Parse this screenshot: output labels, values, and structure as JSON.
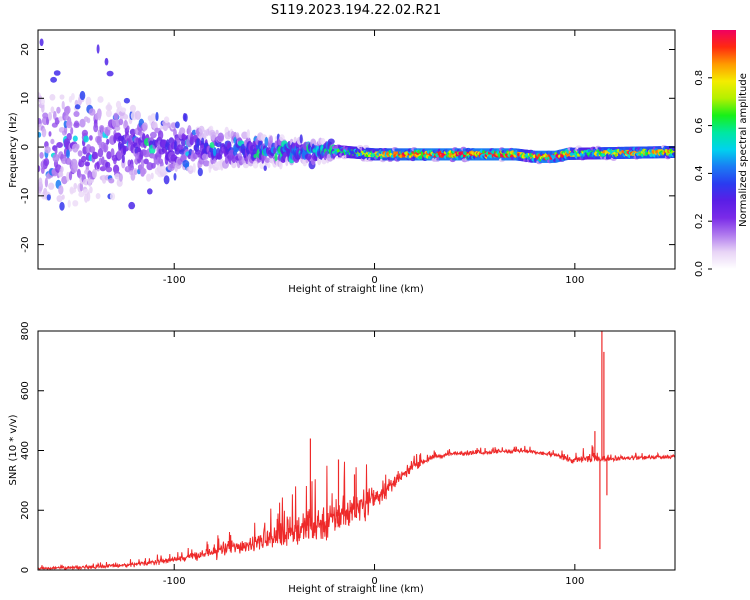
{
  "figure_title": "S119.2023.194.22.02.R21",
  "chart_data": [
    {
      "type": "heatmap",
      "title": "",
      "xlabel": "Height of straight line (km)",
      "ylabel": "Frequency (Hz)",
      "xlim": [
        -168,
        150
      ],
      "ylim": [
        -25,
        24
      ],
      "xticks": [
        -100,
        0,
        100
      ],
      "yticks": [
        -20,
        -10,
        0,
        10,
        20
      ],
      "colorbar": {
        "label": "Normalized spectral amplitude",
        "range": [
          0,
          1
        ],
        "ticks": [
          0.0,
          0.2,
          0.4,
          0.6,
          0.8
        ],
        "colormap": [
          "#ffffff",
          "#e8d4f6",
          "#b07aee",
          "#7a2be8",
          "#5a1ee6",
          "#2a3cf0",
          "#1a7cf4",
          "#00d2ee",
          "#00e8a0",
          "#18f018",
          "#b4f000",
          "#f4ec00",
          "#ff9a00",
          "#ff2a10",
          "#f00060"
        ]
      },
      "features": {
        "peak_frequency_hz": [
          {
            "x": -168,
            "y": 0
          },
          {
            "x": -100,
            "y": 0
          },
          {
            "x": -40,
            "y": -1
          },
          {
            "x": -20,
            "y": -0.8
          },
          {
            "x": 0,
            "y": -1.5
          },
          {
            "x": 40,
            "y": -1.5
          },
          {
            "x": 70,
            "y": -1.5
          },
          {
            "x": 80,
            "y": -2
          },
          {
            "x": 90,
            "y": -2
          },
          {
            "x": 96,
            "y": -1.4
          },
          {
            "x": 150,
            "y": -1
          }
        ],
        "spread_hz": [
          {
            "x": -168,
            "y": 20
          },
          {
            "x": -140,
            "y": 18
          },
          {
            "x": -110,
            "y": 10
          },
          {
            "x": -80,
            "y": 6
          },
          {
            "x": -50,
            "y": 4
          },
          {
            "x": -25,
            "y": 3
          },
          {
            "x": -18,
            "y": 1.2
          },
          {
            "x": 150,
            "y": 1.0
          }
        ],
        "peak_amplitude": [
          {
            "x": -168,
            "y": 0.2
          },
          {
            "x": -100,
            "y": 0.3
          },
          {
            "x": -70,
            "y": 0.35
          },
          {
            "x": -40,
            "y": 0.45
          },
          {
            "x": -20,
            "y": 0.55
          },
          {
            "x": 0,
            "y": 0.8
          },
          {
            "x": 20,
            "y": 0.95
          },
          {
            "x": 70,
            "y": 0.95
          },
          {
            "x": 75,
            "y": 0.7
          },
          {
            "x": 80,
            "y": 0.95
          },
          {
            "x": 94,
            "y": 0.95
          },
          {
            "x": 100,
            "y": 0.75
          },
          {
            "x": 108,
            "y": 0.6
          },
          {
            "x": 112,
            "y": 0.8
          },
          {
            "x": 130,
            "y": 0.85
          },
          {
            "x": 150,
            "y": 0.8
          }
        ]
      }
    },
    {
      "type": "line",
      "title": "",
      "xlabel": "Height of straight line (km)",
      "ylabel": "SNR (10 * v/v)",
      "xlim": [
        -168,
        150
      ],
      "ylim": [
        0,
        800
      ],
      "xticks": [
        -100,
        0,
        100
      ],
      "yticks": [
        0,
        200,
        400,
        600,
        800
      ],
      "series": [
        {
          "color": "#ee2a2a",
          "trend": [
            {
              "x": -168,
              "y": 5
            },
            {
              "x": -140,
              "y": 10
            },
            {
              "x": -120,
              "y": 18
            },
            {
              "x": -100,
              "y": 35
            },
            {
              "x": -80,
              "y": 60
            },
            {
              "x": -60,
              "y": 90
            },
            {
              "x": -45,
              "y": 120
            },
            {
              "x": -30,
              "y": 150
            },
            {
              "x": -20,
              "y": 175
            },
            {
              "x": -10,
              "y": 205
            },
            {
              "x": 0,
              "y": 240
            },
            {
              "x": 10,
              "y": 290
            },
            {
              "x": 20,
              "y": 350
            },
            {
              "x": 30,
              "y": 380
            },
            {
              "x": 40,
              "y": 390
            },
            {
              "x": 60,
              "y": 395
            },
            {
              "x": 75,
              "y": 398
            },
            {
              "x": 90,
              "y": 385
            },
            {
              "x": 100,
              "y": 365
            },
            {
              "x": 108,
              "y": 375
            },
            {
              "x": 115,
              "y": 372
            },
            {
              "x": 130,
              "y": 375
            },
            {
              "x": 150,
              "y": 380
            }
          ],
          "noise": [
            {
              "x": -168,
              "y": 6
            },
            {
              "x": -100,
              "y": 15
            },
            {
              "x": -60,
              "y": 45
            },
            {
              "x": -40,
              "y": 95
            },
            {
              "x": -20,
              "y": 110
            },
            {
              "x": 0,
              "y": 70
            },
            {
              "x": 15,
              "y": 28
            },
            {
              "x": 30,
              "y": 12
            },
            {
              "x": 90,
              "y": 10
            },
            {
              "x": 100,
              "y": 18
            },
            {
              "x": 108,
              "y": 30
            },
            {
              "x": 116,
              "y": 12
            },
            {
              "x": 150,
              "y": 10
            }
          ],
          "spikes": [
            {
              "x": -32,
              "y": 440
            },
            {
              "x": -18,
              "y": 370
            },
            {
              "x": -10,
              "y": 320
            },
            {
              "x": 110,
              "y": 465
            },
            {
              "x": 112.5,
              "y": 70
            },
            {
              "x": 113.5,
              "y": 800
            },
            {
              "x": 114.5,
              "y": 730
            },
            {
              "x": 116,
              "y": 250
            }
          ]
        }
      ]
    }
  ]
}
